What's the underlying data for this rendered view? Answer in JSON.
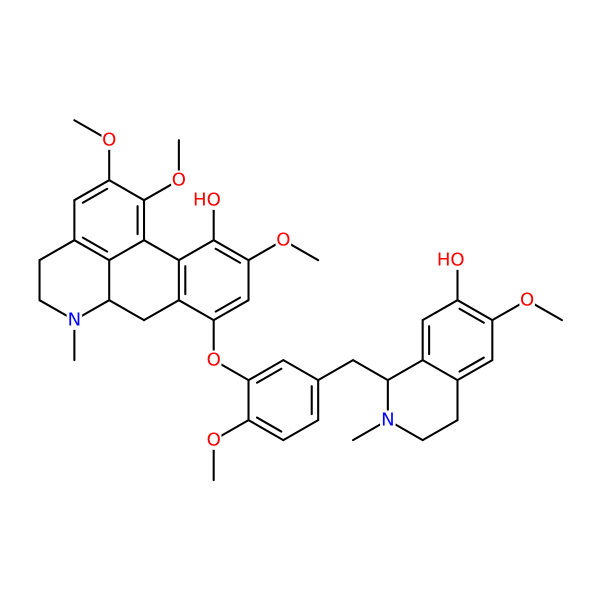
{
  "atom_labels": [
    "O",
    "O",
    "HO",
    "O",
    "O",
    "O",
    "N",
    "N",
    "HO",
    "O"
  ]
}
